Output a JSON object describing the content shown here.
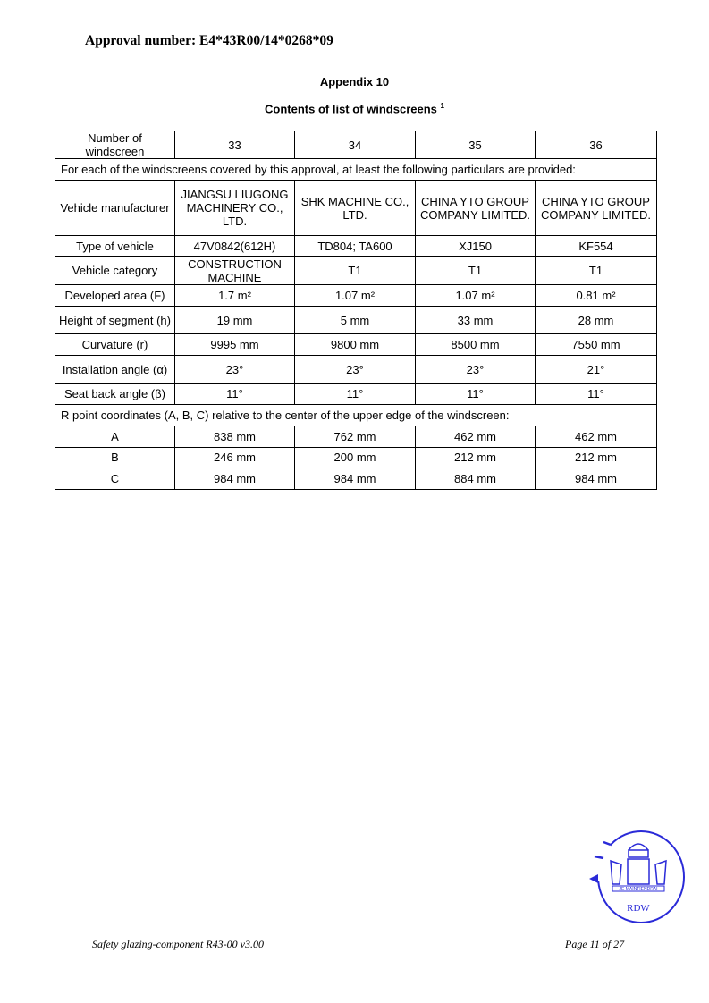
{
  "header": {
    "approval_number": "Approval number: E4*43R00/14*0268*09",
    "appendix": "Appendix 10",
    "title": "Contents of list of windscreens",
    "title_footnote": "1"
  },
  "table": {
    "header": {
      "label": "Number of windscreen",
      "columns": [
        "33",
        "34",
        "35",
        "36"
      ]
    },
    "intro": "For each of the windscreens covered by this approval, at least the following particulars are provided:",
    "rows": [
      {
        "label": "Vehicle manufacturer",
        "values": [
          "JIANGSU LIUGONG MACHINERY CO., LTD.",
          "SHK MACHINE CO., LTD.",
          "CHINA YTO GROUP COMPANY LIMITED.",
          "CHINA YTO GROUP COMPANY LIMITED."
        ]
      },
      {
        "label": "Type of vehicle",
        "values": [
          "47V0842(612H)",
          "TD804; TA600",
          "XJ150",
          "KF554"
        ]
      },
      {
        "label": "Vehicle category",
        "values": [
          "CONSTRUCTION MACHINE",
          "T1",
          "T1",
          "T1"
        ]
      },
      {
        "label": "Developed area (F)",
        "values": [
          "1.7 m²",
          "1.07 m²",
          "1.07 m²",
          "0.81 m²"
        ]
      },
      {
        "label": "Height of segment (h)",
        "values": [
          "19 mm",
          "5 mm",
          "33 mm",
          "28 mm"
        ]
      },
      {
        "label": "Curvature (r)",
        "values": [
          "9995 mm",
          "9800 mm",
          "8500 mm",
          "7550 mm"
        ]
      },
      {
        "label": "Installation angle (α)",
        "values": [
          "23°",
          "23°",
          "23°",
          "21°"
        ]
      },
      {
        "label": "Seat back angle (β)",
        "values": [
          "11°",
          "11°",
          "11°",
          "11°"
        ]
      }
    ],
    "r_point_intro": "R point coordinates (A, B, C) relative to the center of the upper edge of the windscreen:",
    "r_rows": [
      {
        "label": "A",
        "values": [
          "838 mm",
          "762 mm",
          "462 mm",
          "462 mm"
        ]
      },
      {
        "label": "B",
        "values": [
          "246 mm",
          "200 mm",
          "212 mm",
          "212 mm"
        ]
      },
      {
        "label": "C",
        "values": [
          "984 mm",
          "984 mm",
          "884 mm",
          "984 mm"
        ]
      }
    ]
  },
  "footer": {
    "left": "Safety glazing-component R43-00 v3.00",
    "right": "Page 11 of 27"
  },
  "stamp": {
    "text": "RDW",
    "motto": "JE MAINTIENDRAI",
    "color": "#2a2ad8"
  }
}
